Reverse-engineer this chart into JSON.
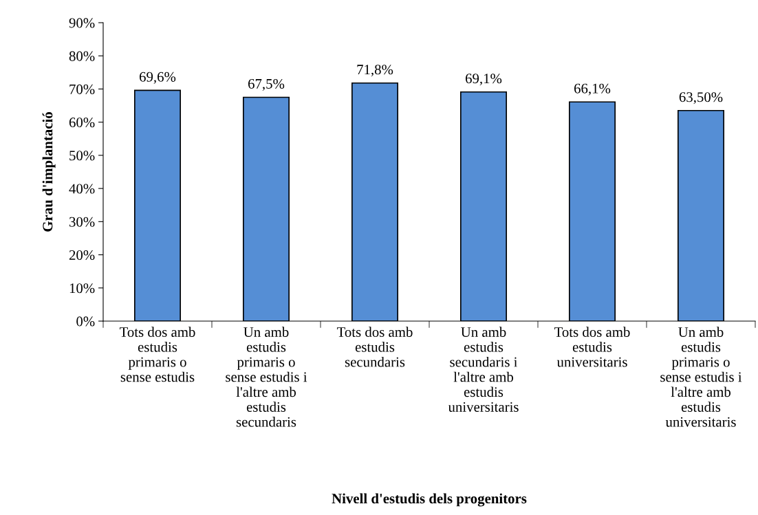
{
  "chart_data": {
    "type": "bar",
    "xlabel": "Nivell d'estudis dels progenitors",
    "ylabel": "Grau d'implantació",
    "categories": [
      "Tots dos amb\nestudis\nprimaris o\nsense estudis",
      "Un amb\nestudis\nprimaris o\nsense estudis i\nl'altre amb\nestudis\nsecundaris",
      "Tots dos amb\nestudis\nsecundaris",
      "Un amb\nestudis\nsecundaris i\nl'altre amb\nestudis\nuniversitaris",
      "Tots dos amb\nestudis\nuniversitaris",
      "Un amb\nestudis\nprimaris o\nsense estudis i\nl'altre amb\nestudis\nuniversitaris"
    ],
    "values": [
      69.6,
      67.5,
      71.8,
      69.1,
      66.1,
      63.5
    ],
    "value_labels": [
      "69,6%",
      "67,5%",
      "71,8%",
      "69,1%",
      "66,1%",
      "63,50%"
    ],
    "color": "#558ed5",
    "ylim": [
      0,
      90
    ],
    "yticks": [
      {
        "value": 0,
        "label": "0%"
      },
      {
        "value": 10,
        "label": "10%"
      },
      {
        "value": 20,
        "label": "20%"
      },
      {
        "value": 30,
        "label": "30%"
      },
      {
        "value": 40,
        "label": "40%"
      },
      {
        "value": 50,
        "label": "50%"
      },
      {
        "value": 60,
        "label": "60%"
      },
      {
        "value": 70,
        "label": "70%"
      },
      {
        "value": 80,
        "label": "80%"
      },
      {
        "value": 90,
        "label": "90%"
      }
    ],
    "grid": false,
    "legend": false
  }
}
